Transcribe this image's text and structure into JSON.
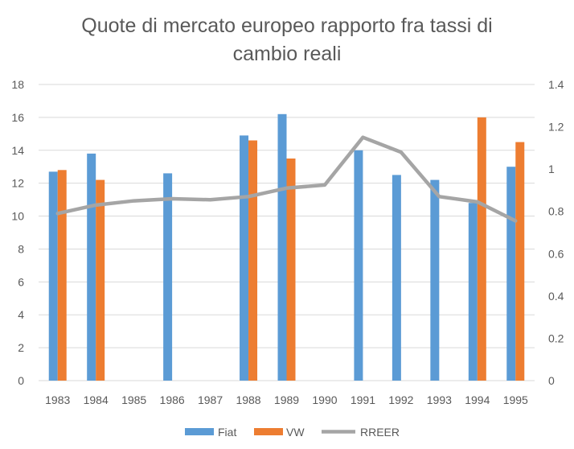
{
  "chart_data": {
    "type": "bar",
    "title_lines": [
      "Quote di mercato europeo rapporto fra tassi di",
      "cambio reali"
    ],
    "categories": [
      "1983",
      "1984",
      "1985",
      "1986",
      "1987",
      "1988",
      "1989",
      "1990",
      "1991",
      "1992",
      "1993",
      "1994",
      "1995"
    ],
    "series": [
      {
        "name": "Fiat",
        "type": "bar",
        "axis": "left",
        "color": "#5B9BD5",
        "values": [
          12.7,
          13.8,
          null,
          12.6,
          null,
          14.9,
          16.2,
          null,
          14.0,
          12.5,
          12.2,
          10.8,
          13.0
        ]
      },
      {
        "name": "VW",
        "type": "bar",
        "axis": "left",
        "color": "#ED7D31",
        "values": [
          12.8,
          12.2,
          null,
          null,
          null,
          14.6,
          13.5,
          null,
          null,
          null,
          null,
          16.0,
          14.5
        ]
      },
      {
        "name": "RREER",
        "type": "line",
        "axis": "right",
        "color": "#A5A5A5",
        "values": [
          0.79,
          0.83,
          0.85,
          0.86,
          0.855,
          0.87,
          0.91,
          0.925,
          1.15,
          1.08,
          0.87,
          0.845,
          0.755
        ]
      }
    ],
    "ylim_left": [
      0,
      18
    ],
    "yticks_left": [
      "0",
      "2",
      "4",
      "6",
      "8",
      "10",
      "12",
      "14",
      "16",
      "18"
    ],
    "ylim_right": [
      0,
      1.4
    ],
    "yticks_right": [
      "0",
      "0.2",
      "0.4",
      "0.6",
      "0.8",
      "1",
      "1.2",
      "1.4"
    ],
    "grid": true,
    "legend_position": "bottom"
  }
}
